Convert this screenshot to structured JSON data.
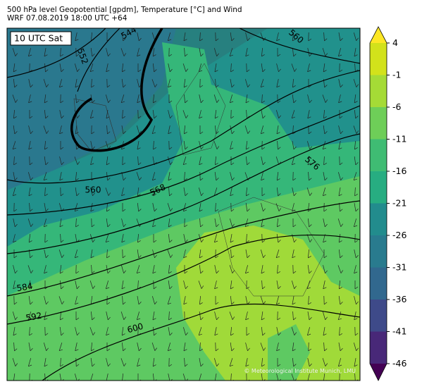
{
  "header": {
    "title": "500 hPa level Geopotential [gpdm], Temperature [°C] and Wind",
    "subtitle": "WRF 07.08.2019 18:00 UTC +64"
  },
  "map": {
    "time_label": "10 UTC Sat",
    "contour_labels": [
      544,
      552,
      560,
      560,
      568,
      576,
      584,
      592,
      600
    ],
    "copyright": "© Meteorological Institute Munich, LMU"
  },
  "colorbar": {
    "ticks": [
      4,
      -1,
      -6,
      -11,
      -16,
      -21,
      -26,
      -31,
      -36,
      -41,
      -46
    ],
    "colors": [
      "#fde725",
      "#d2e21b",
      "#a5db36",
      "#6ece58",
      "#3fbc73",
      "#27ad81",
      "#1f9e89",
      "#228c8d",
      "#297b8e",
      "#31688e",
      "#3e4a89",
      "#482878",
      "#440154"
    ]
  }
}
